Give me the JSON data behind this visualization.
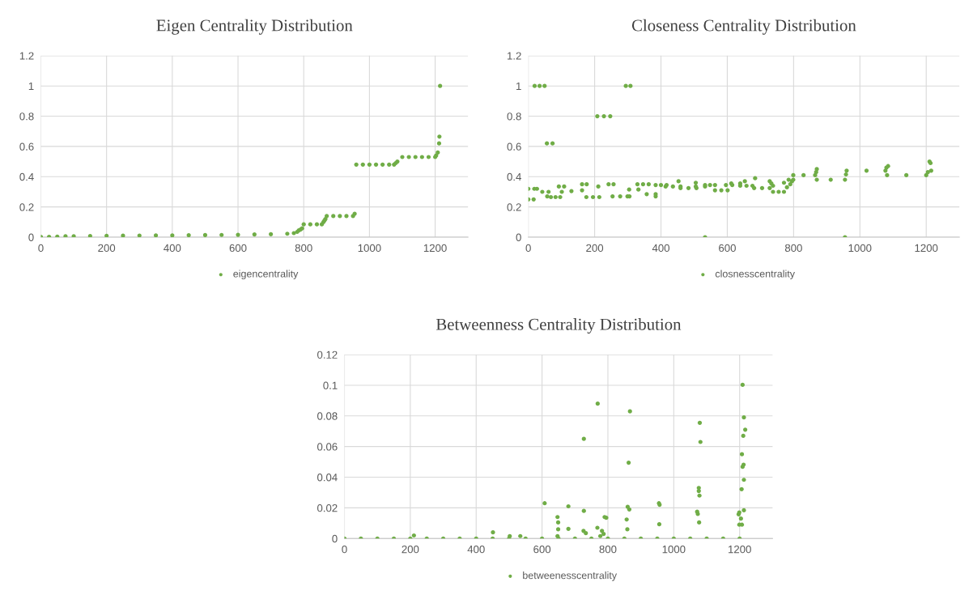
{
  "chart_data": [
    {
      "type": "scatter",
      "title": "Eigen Centrality Distribution",
      "xlim": [
        0,
        1300
      ],
      "xticks": [
        0,
        200,
        400,
        600,
        800,
        1000,
        1200
      ],
      "ylim": [
        0,
        1.2
      ],
      "yticks": [
        0,
        0.2,
        0.4,
        0.6,
        0.8,
        1,
        1.2
      ],
      "grid": true,
      "legend": "bottom",
      "marker": "circle",
      "series": [
        {
          "name": "eigencentrality",
          "color": "#70ad47",
          "x": [
            0,
            25,
            50,
            75,
            100,
            150,
            200,
            250,
            300,
            350,
            400,
            450,
            500,
            550,
            600,
            650,
            700,
            750,
            770,
            780,
            785,
            790,
            795,
            800,
            820,
            840,
            855,
            860,
            863,
            866,
            870,
            890,
            910,
            930,
            950,
            955,
            960,
            980,
            1000,
            1020,
            1040,
            1060,
            1075,
            1080,
            1085,
            1100,
            1120,
            1140,
            1160,
            1180,
            1200,
            1203,
            1208,
            1212,
            1213,
            1215
          ],
          "values": [
            0.003,
            0.003,
            0.004,
            0.006,
            0.007,
            0.008,
            0.009,
            0.01,
            0.011,
            0.012,
            0.012,
            0.013,
            0.014,
            0.015,
            0.016,
            0.018,
            0.02,
            0.023,
            0.027,
            0.035,
            0.045,
            0.05,
            0.058,
            0.085,
            0.085,
            0.085,
            0.085,
            0.1,
            0.11,
            0.12,
            0.14,
            0.14,
            0.14,
            0.14,
            0.14,
            0.155,
            0.48,
            0.48,
            0.48,
            0.48,
            0.48,
            0.48,
            0.48,
            0.49,
            0.5,
            0.53,
            0.53,
            0.53,
            0.53,
            0.53,
            0.53,
            0.54,
            0.56,
            0.62,
            0.665,
            1.0
          ]
        }
      ]
    },
    {
      "type": "scatter",
      "title": "Closeness Centrality Distribution",
      "xlim": [
        0,
        1300
      ],
      "xticks": [
        0,
        200,
        400,
        600,
        800,
        1000,
        1200
      ],
      "ylim": [
        0,
        1.2
      ],
      "yticks": [
        0,
        0.2,
        0.4,
        0.6,
        0.8,
        1,
        1.2
      ],
      "grid": true,
      "legend": "bottom",
      "marker": "circle",
      "series": [
        {
          "name": "closnesscentrality",
          "color": "#70ad47",
          "x": [
            0,
            0,
            16,
            18,
            26,
            19,
            34,
            49,
            42,
            61,
            57,
            56,
            73,
            68,
            82,
            96,
            92,
            108,
            101,
            130,
            162,
            162,
            176,
            175,
            195,
            214,
            211,
            208,
            228,
            247,
            242,
            257,
            254,
            277,
            299,
            294,
            308,
            305,
            304,
            332,
            329,
            346,
            363,
            357,
            384,
            384,
            384,
            400,
            417,
            414,
            436,
            459,
            453,
            459,
            483,
            507,
            505,
            505,
            533,
            533,
            533,
            548,
            563,
            563,
            582,
            601,
            596,
            615,
            612,
            639,
            639,
            658,
            676,
            653,
            684,
            681,
            705,
            728,
            728,
            733,
            738,
            738,
            755,
            771,
            771,
            780,
            785,
            790,
            795,
            799,
            799,
            830,
            865,
            868,
            870,
            870,
            912,
            955,
            955,
            958,
            960,
            1020,
            1077,
            1080,
            1085,
            1082,
            1140,
            1200,
            1205,
            1210,
            1213,
            1215
          ],
          "values": [
            0.32,
            0.25,
            0.25,
            0.32,
            0.32,
            1.0,
            1.0,
            1.0,
            0.3,
            0.3,
            0.27,
            0.62,
            0.62,
            0.265,
            0.265,
            0.265,
            0.335,
            0.335,
            0.3,
            0.305,
            0.31,
            0.35,
            0.35,
            0.265,
            0.265,
            0.265,
            0.335,
            0.8,
            0.8,
            0.8,
            0.35,
            0.35,
            0.27,
            0.27,
            0.27,
            1.0,
            1.0,
            0.27,
            0.315,
            0.315,
            0.35,
            0.35,
            0.35,
            0.285,
            0.285,
            0.27,
            0.345,
            0.345,
            0.345,
            0.335,
            0.335,
            0.335,
            0.37,
            0.325,
            0.325,
            0.325,
            0.36,
            0.335,
            0.335,
            0,
            0.345,
            0.345,
            0.345,
            0.31,
            0.31,
            0.31,
            0.345,
            0.345,
            0.355,
            0.355,
            0.34,
            0.34,
            0.34,
            0.37,
            0.39,
            0.325,
            0.325,
            0.325,
            0.37,
            0.355,
            0.34,
            0.3,
            0.3,
            0.3,
            0.36,
            0.33,
            0.38,
            0.35,
            0.37,
            0.38,
            0.41,
            0.41,
            0.41,
            0.43,
            0.45,
            0.38,
            0.38,
            0.38,
            0,
            0.415,
            0.44,
            0.44,
            0.44,
            0.46,
            0.47,
            0.41,
            0.41,
            0.41,
            0.43,
            0.5,
            0.49,
            0.44
          ]
        }
      ]
    },
    {
      "type": "scatter",
      "title": "Betweenness Centrality Distribution",
      "xlim": [
        0,
        1300
      ],
      "xticks": [
        0,
        200,
        400,
        600,
        800,
        1000,
        1200
      ],
      "ylim": [
        0,
        0.12
      ],
      "yticks": [
        0,
        0.02,
        0.04,
        0.06,
        0.08,
        0.1,
        0.12
      ],
      "grid": true,
      "legend": "bottom",
      "marker": "circle",
      "series": [
        {
          "name": "betweenesscentrality",
          "color": "#70ad47",
          "x": [
            0,
            50,
            100,
            150,
            200,
            250,
            300,
            350,
            400,
            450,
            500,
            550,
            600,
            650,
            700,
            750,
            800,
            850,
            900,
            950,
            1000,
            1050,
            1100,
            1150,
            1200,
            211,
            451,
            502,
            534,
            608,
            647,
            649,
            649,
            647,
            680,
            680,
            727,
            727,
            726,
            733,
            769,
            768,
            782,
            787,
            777,
            790,
            795,
            867,
            863,
            860,
            865,
            857,
            859,
            955,
            957,
            956,
            1079,
            1081,
            1076,
            1076,
            1078,
            1071,
            1073,
            1077,
            1209,
            1213,
            1217,
            1211,
            1207,
            1212,
            1209,
            1213,
            1206,
            1213,
            1199,
            1197,
            1204,
            1199,
            1207
          ],
          "values": [
            0,
            0,
            0,
            0,
            0,
            0,
            0,
            0,
            0,
            0,
            0,
            0,
            0,
            0,
            0,
            0,
            0,
            0,
            0,
            0,
            0,
            0,
            0,
            0,
            0,
            0.002,
            0.004,
            0.0016,
            0.0016,
            0.023,
            0.014,
            0.0105,
            0.006,
            0.0016,
            0.021,
            0.0063,
            0.065,
            0.018,
            0.005,
            0.0035,
            0.088,
            0.007,
            0.005,
            0.003,
            0.0016,
            0.014,
            0.0135,
            0.083,
            0.0495,
            0.0207,
            0.019,
            0.0124,
            0.006,
            0.023,
            0.022,
            0.0093,
            0.0755,
            0.063,
            0.033,
            0.031,
            0.028,
            0.0175,
            0.016,
            0.0105,
            0.1003,
            0.079,
            0.071,
            0.067,
            0.055,
            0.0482,
            0.0468,
            0.0383,
            0.0322,
            0.0184,
            0.017,
            0.0158,
            0.013,
            0.009,
            0.009
          ]
        }
      ]
    }
  ]
}
